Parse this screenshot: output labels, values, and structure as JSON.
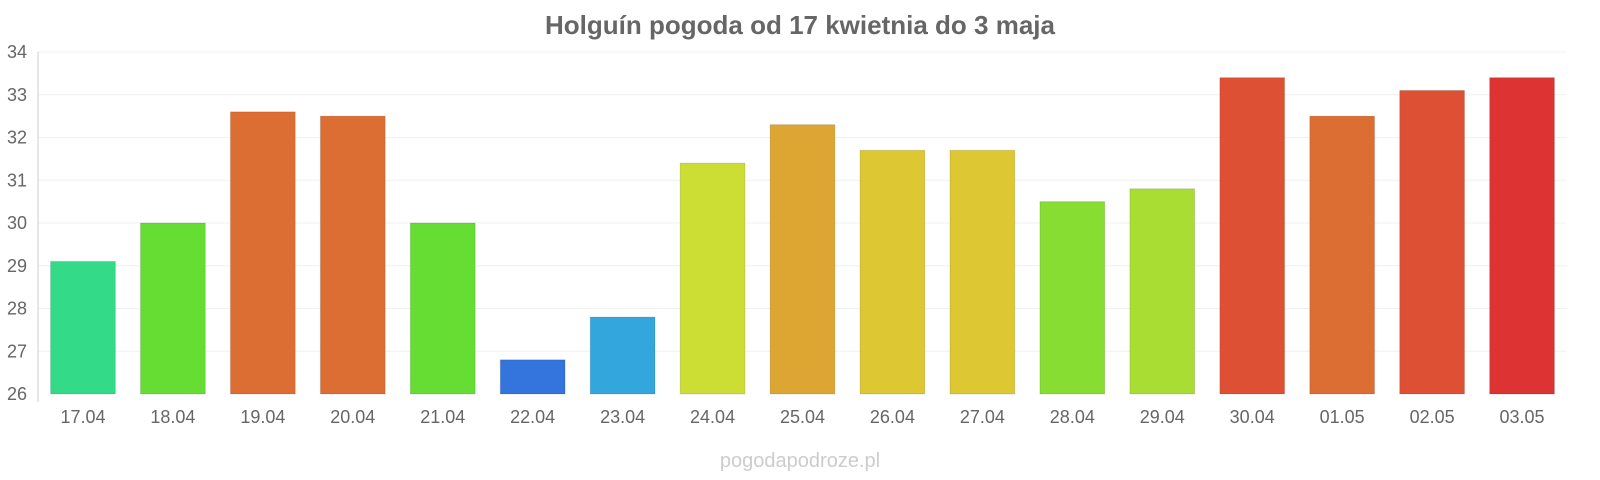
{
  "chart_data": {
    "type": "bar",
    "title": "Holguín pogoda od 17 kwietnia do 3 maja",
    "xlabel": "",
    "ylabel": "",
    "ylim": [
      26,
      34
    ],
    "yticks": [
      "26",
      "27",
      "28",
      "29",
      "30",
      "31",
      "32",
      "33",
      "34"
    ],
    "grid": true,
    "categories": [
      "17.04",
      "18.04",
      "19.04",
      "20.04",
      "21.04",
      "22.04",
      "23.04",
      "24.04",
      "25.04",
      "26.04",
      "27.04",
      "28.04",
      "29.04",
      "30.04",
      "01.05",
      "02.05",
      "03.05"
    ],
    "values": [
      29.1,
      30.0,
      32.6,
      32.5,
      30.0,
      26.8,
      27.8,
      31.4,
      32.3,
      31.7,
      31.7,
      30.5,
      30.8,
      33.4,
      32.5,
      33.1,
      33.4
    ],
    "colors": [
      "#33db88",
      "#66dd33",
      "#dd6e33",
      "#dd6e33",
      "#66dd33",
      "#3374dd",
      "#33a6dd",
      "#ccdd33",
      "#dda633",
      "#ddc733",
      "#ddc733",
      "#88dd33",
      "#aadd33",
      "#dd5033",
      "#dd6e33",
      "#dd5033",
      "#dd3333"
    ]
  },
  "watermark": "pogodapodroze.pl"
}
